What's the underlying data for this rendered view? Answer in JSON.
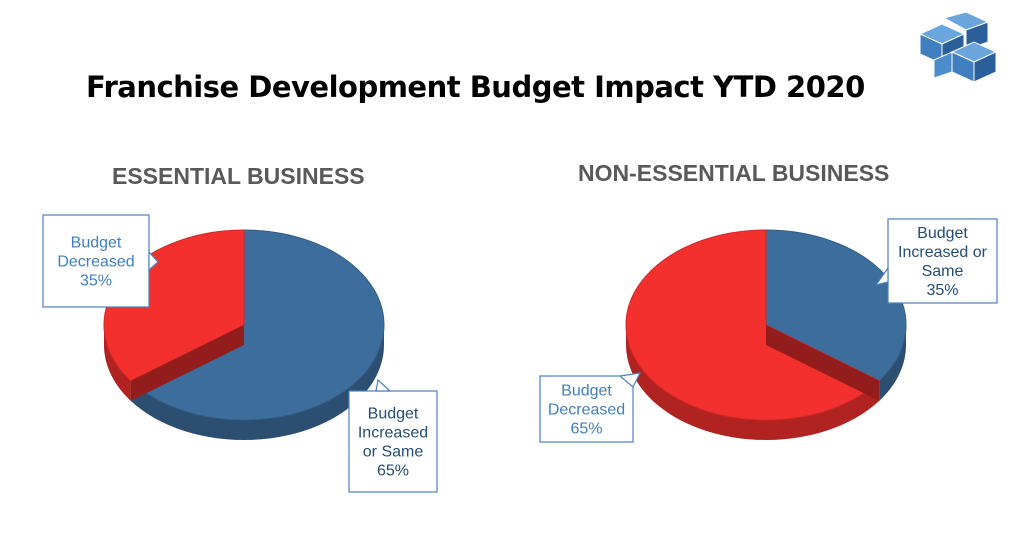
{
  "page": {
    "title": "Franchise Development Budget Impact YTD 2020",
    "logo_icon": "cube-logo-icon"
  },
  "colors": {
    "blue": "#3d6d9c",
    "red": "#f4302e",
    "label_blue_light": "#3f7fbf",
    "label_blue_dark": "#244d75"
  },
  "chart_data": [
    {
      "type": "pie",
      "title": "ESSENTIAL BUSINESS",
      "slices": [
        {
          "label_lines": [
            "Budget",
            "Decreased",
            "35%"
          ],
          "value": 35,
          "color": "#f4302e"
        },
        {
          "label_lines": [
            "Budget",
            "Increased",
            "or Same",
            "65%"
          ],
          "value": 65,
          "color": "#3d6d9c"
        }
      ]
    },
    {
      "type": "pie",
      "title": "NON-ESSENTIAL BUSINESS",
      "slices": [
        {
          "label_lines": [
            "Budget",
            "Increased or",
            "Same",
            "35%"
          ],
          "value": 35,
          "color": "#3d6d9c"
        },
        {
          "label_lines": [
            "Budget",
            "Decreased",
            "65%"
          ],
          "value": 65,
          "color": "#f4302e"
        }
      ]
    }
  ]
}
